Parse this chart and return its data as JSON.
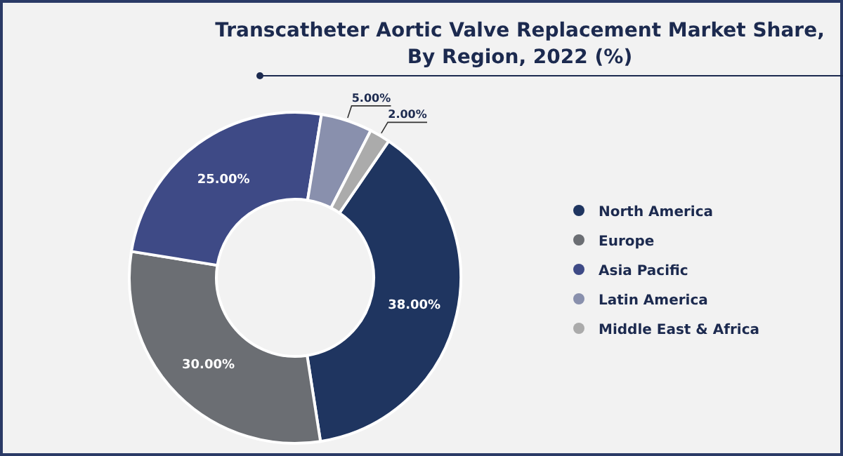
{
  "chart_data": {
    "type": "donut",
    "title": "Transcatheter Aortic Valve Replacement Market Share, By Region, 2022 (%)",
    "categories": [
      "North America",
      "Europe",
      "Asia Pacific",
      "Latin America",
      "Middle East & Africa"
    ],
    "values": [
      38,
      30,
      25,
      5,
      2
    ],
    "colors": [
      "#1f3560",
      "#6b6e73",
      "#3e4a86",
      "#8990ad",
      "#ababab"
    ],
    "value_labels": [
      "38.00%",
      "30.00%",
      "25.00%",
      "5.00%",
      "2.00%"
    ],
    "legend": "right"
  }
}
